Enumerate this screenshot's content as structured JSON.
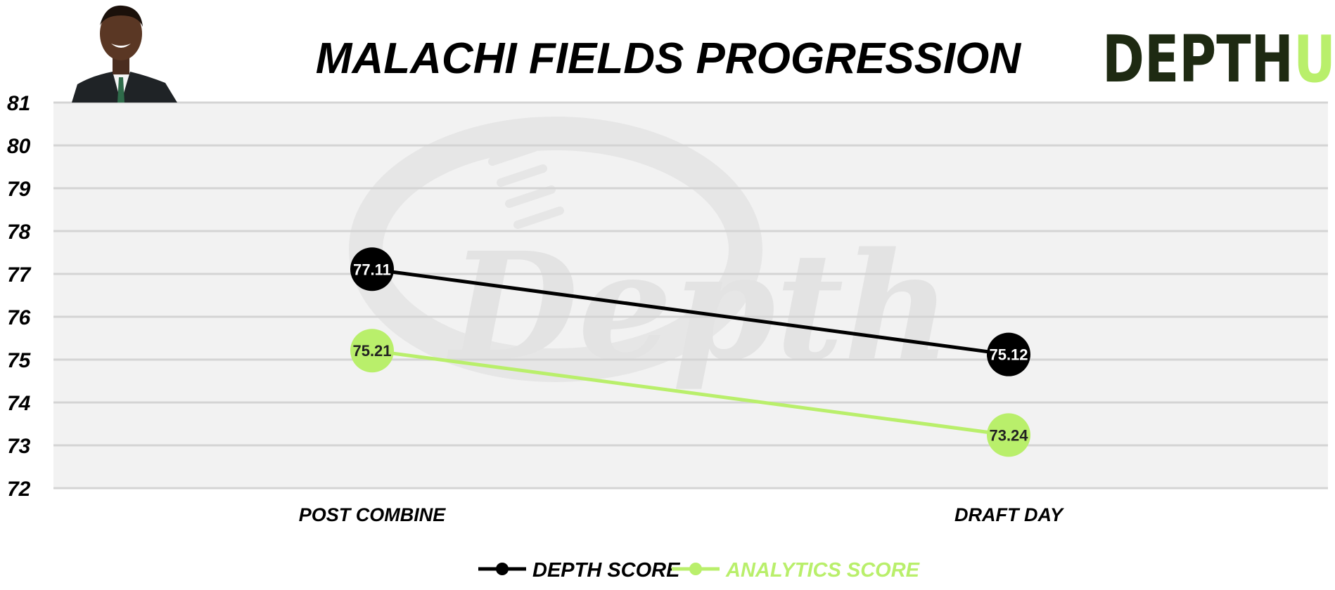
{
  "chart_data": {
    "type": "line",
    "title": "MALACHI FIELDS PROGRESSION",
    "categories": [
      "POST COMBINE",
      "DRAFT DAY"
    ],
    "series": [
      {
        "name": "DEPTH SCORE",
        "values": [
          77.11,
          75.12
        ],
        "labels": [
          "77.11",
          "75.12"
        ],
        "color": "#000000",
        "label_color": "#ffffff"
      },
      {
        "name": "ANALYTICS SCORE",
        "values": [
          75.21,
          73.24
        ],
        "labels": [
          "75.21",
          "73.24"
        ],
        "color": "#b9ef6b",
        "label_color": "#222222"
      }
    ],
    "ylim": [
      72,
      81
    ],
    "yticks": [
      "72",
      "73",
      "74",
      "75",
      "76",
      "77",
      "78",
      "79",
      "80",
      "81"
    ],
    "grid": true,
    "legend_position": "bottom-center"
  },
  "branding": {
    "logo_main": "DEPTH",
    "logo_accent": "U",
    "logo_color": "#1e2a12",
    "accent_color": "#b9ef6b",
    "watermark": "Depth"
  },
  "colors": {
    "plot_background": "#f2f2f2",
    "grid": "#d4d4d4"
  },
  "photo": {
    "icon": "player-headshot"
  }
}
